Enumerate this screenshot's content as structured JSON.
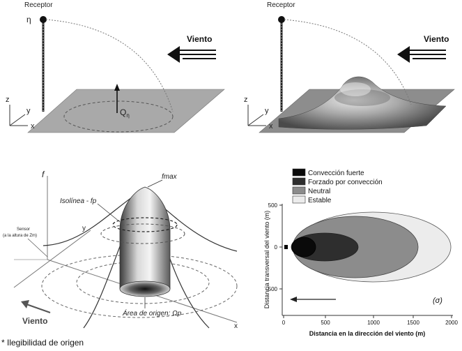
{
  "panel_a": {
    "receptor_label": "Receptor",
    "eta_label": "η",
    "wind_label": "Viento",
    "axis_z": "z",
    "axis_y": "y",
    "axis_x": "x",
    "flux_label": "Q",
    "flux_sub": "η"
  },
  "panel_b": {
    "receptor_label": "Receptor",
    "wind_label": "Viento",
    "axis_z": "z",
    "axis_y": "y",
    "axis_x": "x"
  },
  "panel_c": {
    "f_axis": "f",
    "fmax_label": "fmax",
    "isoline_label": "Isolínea - fp",
    "sensor_label": "Sensor",
    "sensor_sub": "(a la altura de Zm)",
    "axis_y": "y",
    "axis_x": "x",
    "wind_label": "Viento",
    "origin_area_label": "Área de origen: Ωp"
  },
  "panel_d": {
    "legend": [
      {
        "label": "Convección fuerte",
        "color": "#0a0a0a"
      },
      {
        "label": "Forzado por convección",
        "color": "#2e2e2e"
      },
      {
        "label": "Neutral",
        "color": "#8c8c8c"
      },
      {
        "label": "Estable",
        "color": "#ececec"
      }
    ],
    "y_label": "Distancia transversal del viento (m)",
    "x_label": "Distancia en la dirección del viento (m)",
    "y_ticks": [
      "500",
      "0",
      "-500"
    ],
    "x_ticks": [
      "0",
      "500",
      "1000",
      "1500",
      "2000"
    ],
    "panel_tag": "(σ)"
  },
  "caption": "* Ilegibilidad de origen"
}
